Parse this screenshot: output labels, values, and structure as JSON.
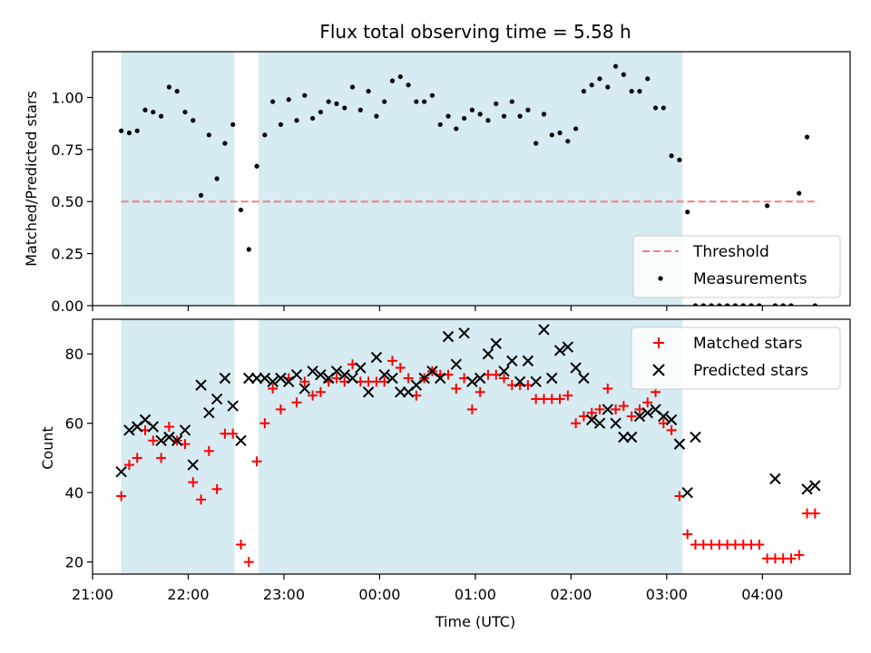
{
  "title": "Flux total observing time = 5.58 h",
  "colors": {
    "shade": "#add8e6",
    "threshold": "#f08080",
    "matched": "#ff0000",
    "predicted": "#000000",
    "measurement": "#000000"
  },
  "chart_data": [
    {
      "type": "scatter",
      "ylabel": "Matched/Predicted stars",
      "xlim": [
        "21:00",
        "04:55"
      ],
      "ylim": [
        0,
        1.22
      ],
      "y_ticks": [
        "0.00",
        "0.25",
        "0.50",
        "0.75",
        "1.00"
      ],
      "x_tick_labels_shown": false,
      "shaded_intervals": [
        [
          "21:18",
          "22:29"
        ],
        [
          "22:44",
          "03:10"
        ]
      ],
      "threshold": {
        "name": "Threshold",
        "value": 0.5,
        "x_range": [
          "21:18",
          "04:35"
        ],
        "style": "dashed"
      },
      "legend": {
        "position": "lower-right",
        "entries": [
          "Threshold",
          "Measurements"
        ]
      },
      "series": [
        {
          "name": "Measurements",
          "marker": "dot",
          "points": [
            [
              "21:18",
              0.84
            ],
            [
              "21:23",
              0.83
            ],
            [
              "21:28",
              0.84
            ],
            [
              "21:33",
              0.94
            ],
            [
              "21:38",
              0.93
            ],
            [
              "21:43",
              0.91
            ],
            [
              "21:48",
              1.05
            ],
            [
              "21:53",
              1.03
            ],
            [
              "21:58",
              0.93
            ],
            [
              "22:03",
              0.89
            ],
            [
              "22:08",
              0.53
            ],
            [
              "22:13",
              0.82
            ],
            [
              "22:18",
              0.61
            ],
            [
              "22:23",
              0.78
            ],
            [
              "22:28",
              0.87
            ],
            [
              "22:33",
              0.46
            ],
            [
              "22:38",
              0.27
            ],
            [
              "22:43",
              0.67
            ],
            [
              "22:48",
              0.82
            ],
            [
              "22:53",
              0.98
            ],
            [
              "22:58",
              0.87
            ],
            [
              "23:03",
              0.99
            ],
            [
              "23:08",
              0.89
            ],
            [
              "23:13",
              1.01
            ],
            [
              "23:18",
              0.9
            ],
            [
              "23:23",
              0.93
            ],
            [
              "23:28",
              0.98
            ],
            [
              "23:33",
              0.97
            ],
            [
              "23:38",
              0.95
            ],
            [
              "23:43",
              1.05
            ],
            [
              "23:48",
              0.94
            ],
            [
              "23:53",
              1.03
            ],
            [
              "23:58",
              0.91
            ],
            [
              "00:03",
              0.98
            ],
            [
              "00:08",
              1.08
            ],
            [
              "00:13",
              1.1
            ],
            [
              "00:18",
              1.06
            ],
            [
              "00:23",
              0.98
            ],
            [
              "00:28",
              0.98
            ],
            [
              "00:33",
              1.01
            ],
            [
              "00:38",
              0.87
            ],
            [
              "00:43",
              0.91
            ],
            [
              "00:48",
              0.85
            ],
            [
              "00:53",
              0.9
            ],
            [
              "00:58",
              0.94
            ],
            [
              "01:03",
              0.92
            ],
            [
              "01:08",
              0.89
            ],
            [
              "01:13",
              0.97
            ],
            [
              "01:18",
              0.91
            ],
            [
              "01:23",
              0.98
            ],
            [
              "01:28",
              0.91
            ],
            [
              "01:33",
              0.94
            ],
            [
              "01:38",
              0.78
            ],
            [
              "01:43",
              0.92
            ],
            [
              "01:48",
              0.82
            ],
            [
              "01:53",
              0.83
            ],
            [
              "01:58",
              0.79
            ],
            [
              "02:03",
              0.85
            ],
            [
              "02:08",
              1.03
            ],
            [
              "02:13",
              1.06
            ],
            [
              "02:18",
              1.09
            ],
            [
              "02:23",
              1.05
            ],
            [
              "02:28",
              1.15
            ],
            [
              "02:33",
              1.11
            ],
            [
              "02:38",
              1.03
            ],
            [
              "02:43",
              1.03
            ],
            [
              "02:48",
              1.09
            ],
            [
              "02:53",
              0.95
            ],
            [
              "02:58",
              0.95
            ],
            [
              "03:03",
              0.72
            ],
            [
              "03:08",
              0.7
            ],
            [
              "03:13",
              0.45
            ],
            [
              "03:18",
              0.0
            ],
            [
              "03:23",
              0.0
            ],
            [
              "03:28",
              0.0
            ],
            [
              "03:33",
              0.0
            ],
            [
              "03:38",
              0.0
            ],
            [
              "03:43",
              0.0
            ],
            [
              "03:48",
              0.0
            ],
            [
              "03:53",
              0.0
            ],
            [
              "03:58",
              0.0
            ],
            [
              "04:03",
              0.48
            ],
            [
              "04:08",
              0.0
            ],
            [
              "04:13",
              0.0
            ],
            [
              "04:18",
              0.0
            ],
            [
              "04:23",
              0.54
            ],
            [
              "04:28",
              0.81
            ],
            [
              "04:33",
              0.0
            ]
          ]
        }
      ]
    },
    {
      "type": "scatter",
      "xlabel": "Time (UTC)",
      "ylabel": "Count",
      "xlim": [
        "21:00",
        "04:55"
      ],
      "ylim": [
        16.5,
        90
      ],
      "x_ticks": [
        "21:00",
        "22:00",
        "23:00",
        "00:00",
        "01:00",
        "02:00",
        "03:00",
        "04:00"
      ],
      "y_ticks": [
        "20",
        "40",
        "60",
        "80"
      ],
      "shaded_intervals": [
        [
          "21:18",
          "22:29"
        ],
        [
          "22:44",
          "03:10"
        ]
      ],
      "legend": {
        "position": "top-right",
        "entries": [
          "Matched stars",
          "Predicted stars"
        ]
      },
      "series": [
        {
          "name": "Matched stars",
          "marker": "plus",
          "points": [
            [
              "21:18",
              39
            ],
            [
              "21:23",
              48
            ],
            [
              "21:28",
              50
            ],
            [
              "21:33",
              58
            ],
            [
              "21:38",
              55
            ],
            [
              "21:43",
              50
            ],
            [
              "21:48",
              59
            ],
            [
              "21:53",
              55
            ],
            [
              "21:58",
              54
            ],
            [
              "22:03",
              43
            ],
            [
              "22:08",
              38
            ],
            [
              "22:13",
              52
            ],
            [
              "22:18",
              41
            ],
            [
              "22:23",
              57
            ],
            [
              "22:28",
              57
            ],
            [
              "22:33",
              25
            ],
            [
              "22:38",
              20
            ],
            [
              "22:43",
              49
            ],
            [
              "22:48",
              60
            ],
            [
              "22:53",
              70
            ],
            [
              "22:58",
              64
            ],
            [
              "23:03",
              73
            ],
            [
              "23:08",
              66
            ],
            [
              "23:13",
              72
            ],
            [
              "23:18",
              68
            ],
            [
              "23:23",
              69
            ],
            [
              "23:28",
              72
            ],
            [
              "23:33",
              73
            ],
            [
              "23:38",
              72
            ],
            [
              "23:43",
              77
            ],
            [
              "23:48",
              72
            ],
            [
              "23:53",
              72
            ],
            [
              "23:58",
              72
            ],
            [
              "00:03",
              72
            ],
            [
              "00:08",
              78
            ],
            [
              "00:13",
              76
            ],
            [
              "00:18",
              73
            ],
            [
              "00:23",
              68
            ],
            [
              "00:28",
              73
            ],
            [
              "00:33",
              75
            ],
            [
              "00:38",
              74
            ],
            [
              "00:43",
              74
            ],
            [
              "00:48",
              70
            ],
            [
              "00:53",
              73
            ],
            [
              "00:58",
              64
            ],
            [
              "01:03",
              69
            ],
            [
              "01:08",
              74
            ],
            [
              "01:13",
              74
            ],
            [
              "01:18",
              73
            ],
            [
              "01:23",
              71
            ],
            [
              "01:28",
              71
            ],
            [
              "01:33",
              71
            ],
            [
              "01:38",
              67
            ],
            [
              "01:43",
              67
            ],
            [
              "01:48",
              67
            ],
            [
              "01:53",
              67
            ],
            [
              "01:58",
              68
            ],
            [
              "02:03",
              60
            ],
            [
              "02:08",
              62
            ],
            [
              "02:13",
              63
            ],
            [
              "02:18",
              64
            ],
            [
              "02:23",
              70
            ],
            [
              "02:28",
              64
            ],
            [
              "02:33",
              65
            ],
            [
              "02:38",
              62
            ],
            [
              "02:43",
              64
            ],
            [
              "02:48",
              66
            ],
            [
              "02:53",
              69
            ],
            [
              "02:58",
              60
            ],
            [
              "03:03",
              58
            ],
            [
              "03:08",
              39
            ],
            [
              "03:13",
              28
            ],
            [
              "03:18",
              25
            ],
            [
              "03:23",
              25
            ],
            [
              "03:28",
              25
            ],
            [
              "03:33",
              25
            ],
            [
              "03:38",
              25
            ],
            [
              "03:43",
              25
            ],
            [
              "03:48",
              25
            ],
            [
              "03:53",
              25
            ],
            [
              "03:58",
              25
            ],
            [
              "04:03",
              21
            ],
            [
              "04:08",
              21
            ],
            [
              "04:13",
              21
            ],
            [
              "04:18",
              21
            ],
            [
              "04:23",
              22
            ],
            [
              "04:28",
              34
            ],
            [
              "04:33",
              34
            ]
          ]
        },
        {
          "name": "Predicted stars",
          "marker": "x",
          "points": [
            [
              "21:18",
              46
            ],
            [
              "21:23",
              58
            ],
            [
              "21:28",
              59
            ],
            [
              "21:33",
              61
            ],
            [
              "21:38",
              59
            ],
            [
              "21:43",
              55
            ],
            [
              "21:48",
              56
            ],
            [
              "21:53",
              55
            ],
            [
              "21:58",
              58
            ],
            [
              "22:03",
              48
            ],
            [
              "22:08",
              71
            ],
            [
              "22:13",
              63
            ],
            [
              "22:18",
              67
            ],
            [
              "22:23",
              73
            ],
            [
              "22:28",
              65
            ],
            [
              "22:33",
              55
            ],
            [
              "22:38",
              73
            ],
            [
              "22:43",
              73
            ],
            [
              "22:48",
              73
            ],
            [
              "22:53",
              72
            ],
            [
              "22:58",
              73
            ],
            [
              "23:03",
              72
            ],
            [
              "23:08",
              74
            ],
            [
              "23:13",
              70
            ],
            [
              "23:18",
              75
            ],
            [
              "23:23",
              74
            ],
            [
              "23:28",
              73
            ],
            [
              "23:33",
              75
            ],
            [
              "23:38",
              74
            ],
            [
              "23:43",
              73
            ],
            [
              "23:48",
              76
            ],
            [
              "23:53",
              69
            ],
            [
              "23:58",
              79
            ],
            [
              "00:03",
              74
            ],
            [
              "00:08",
              73
            ],
            [
              "00:13",
              69
            ],
            [
              "00:18",
              69
            ],
            [
              "00:23",
              71
            ],
            [
              "00:28",
              73
            ],
            [
              "00:33",
              75
            ],
            [
              "00:38",
              73
            ],
            [
              "00:43",
              85
            ],
            [
              "00:48",
              77
            ],
            [
              "00:53",
              86
            ],
            [
              "00:58",
              72
            ],
            [
              "01:03",
              73
            ],
            [
              "01:08",
              80
            ],
            [
              "01:13",
              83
            ],
            [
              "01:18",
              75
            ],
            [
              "01:23",
              78
            ],
            [
              "01:28",
              72
            ],
            [
              "01:33",
              78
            ],
            [
              "01:38",
              72
            ],
            [
              "01:43",
              87
            ],
            [
              "01:48",
              73
            ],
            [
              "01:53",
              81
            ],
            [
              "01:58",
              82
            ],
            [
              "02:03",
              76
            ],
            [
              "02:08",
              73
            ],
            [
              "02:13",
              61
            ],
            [
              "02:18",
              60
            ],
            [
              "02:23",
              64
            ],
            [
              "02:28",
              60
            ],
            [
              "02:33",
              56
            ],
            [
              "02:38",
              56
            ],
            [
              "02:43",
              62
            ],
            [
              "02:48",
              63
            ],
            [
              "02:53",
              64
            ],
            [
              "02:58",
              62
            ],
            [
              "03:03",
              61
            ],
            [
              "03:08",
              54
            ],
            [
              "03:13",
              40
            ],
            [
              "03:18",
              56
            ],
            [
              "04:08",
              44
            ],
            [
              "04:28",
              41
            ],
            [
              "04:33",
              42
            ]
          ]
        }
      ]
    }
  ]
}
